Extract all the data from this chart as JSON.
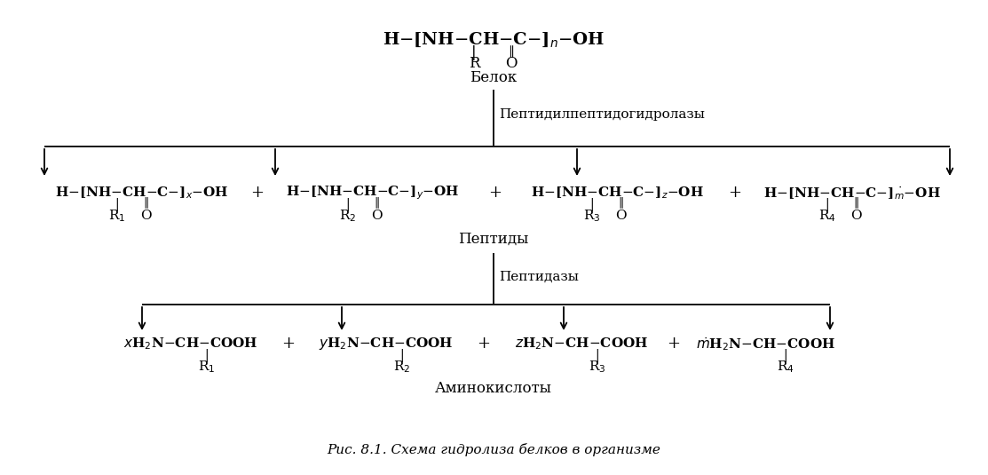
{
  "title": "Рис. 8.1. Схема гидролиза белков в организме",
  "bg_color": "#ffffff",
  "text_color": "#000000",
  "protein_label": "Белок",
  "enzyme1_label": "Пептидилпептидогидролазы",
  "peptides_label": "Пептиды",
  "enzyme2_label": "Пептидазы",
  "amino_label": "Аминокислоты",
  "figsize": [
    11.13,
    5.35
  ],
  "dpi": 100
}
